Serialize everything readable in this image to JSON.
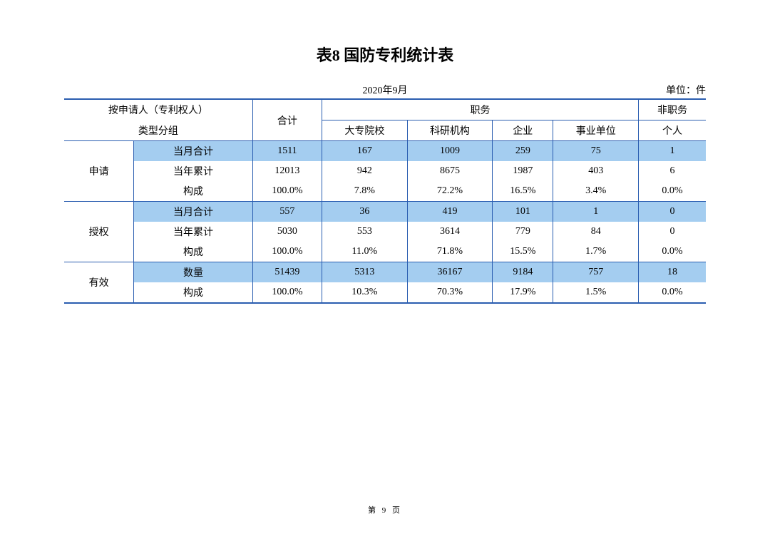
{
  "title": "表8 国防专利统计表",
  "period": "2020年9月",
  "unit": "单位：件",
  "header": {
    "group_label_line1": "按申请人（专利权人）",
    "group_label_line2": "类型分组",
    "total": "合计",
    "position": "职务",
    "non_position": "非职务",
    "col1": "大专院校",
    "col2": "科研机构",
    "col3": "企业",
    "col4": "事业单位",
    "col5": "个人"
  },
  "sections": {
    "apply": {
      "label": "申请",
      "r1_label": "当月合计",
      "r1": [
        "1511",
        "167",
        "1009",
        "259",
        "75",
        "1"
      ],
      "r2_label": "当年累计",
      "r2": [
        "12013",
        "942",
        "8675",
        "1987",
        "403",
        "6"
      ],
      "r3_label": "构成",
      "r3": [
        "100.0%",
        "7.8%",
        "72.2%",
        "16.5%",
        "3.4%",
        "0.0%"
      ]
    },
    "grant": {
      "label": "授权",
      "r1_label": "当月合计",
      "r1": [
        "557",
        "36",
        "419",
        "101",
        "1",
        "0"
      ],
      "r2_label": "当年累计",
      "r2": [
        "5030",
        "553",
        "3614",
        "779",
        "84",
        "0"
      ],
      "r3_label": "构成",
      "r3": [
        "100.0%",
        "11.0%",
        "71.8%",
        "15.5%",
        "1.7%",
        "0.0%"
      ]
    },
    "valid": {
      "label": "有效",
      "r1_label": "数量",
      "r1": [
        "51439",
        "5313",
        "36167",
        "9184",
        "757",
        "18"
      ],
      "r2_label": "构成",
      "r2": [
        "100.0%",
        "10.3%",
        "70.3%",
        "17.9%",
        "1.5%",
        "0.0%"
      ]
    }
  },
  "footer": "第 9 页",
  "style": {
    "highlight_bg": "#a4cdf0",
    "border_color": "#2a5db0",
    "page_bg": "#ffffff",
    "text_color": "#000000",
    "title_fontsize": 22,
    "body_fontsize": 14
  }
}
